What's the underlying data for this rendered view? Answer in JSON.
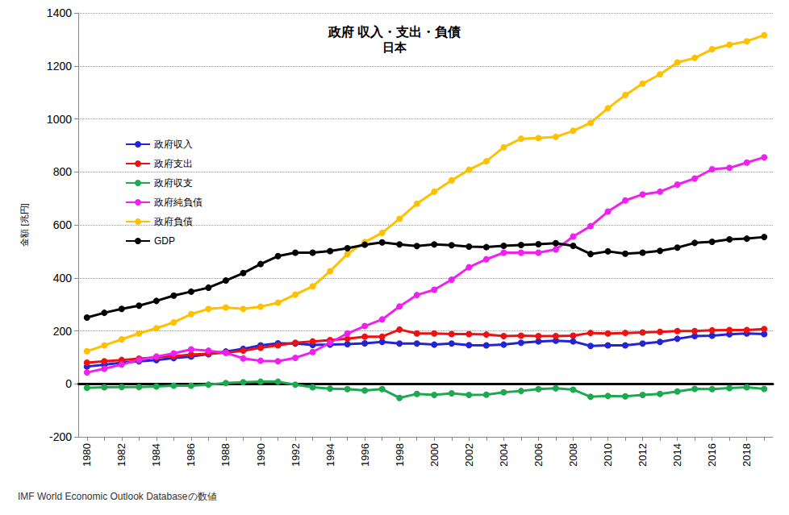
{
  "chart_data": {
    "type": "line",
    "title": "政府 収入・支出・負債",
    "subtitle": "日本",
    "ylabel": "金額 [兆円]",
    "annotations": [
      "IMF World Economic Outlook Databaseの数値"
    ],
    "categories": [
      "1980",
      null,
      "1982",
      null,
      "1984",
      null,
      "1986",
      null,
      "1988",
      null,
      "1990",
      null,
      "1992",
      null,
      "1994",
      null,
      "1996",
      null,
      "1998",
      null,
      "2000",
      null,
      "2002",
      null,
      "2004",
      null,
      "2006",
      null,
      "2008",
      null,
      "2010",
      null,
      "2012",
      null,
      "2014",
      null,
      "2016",
      null,
      "2018",
      null
    ],
    "ylim": [
      -200,
      1400
    ],
    "yticks": [
      -200,
      0,
      200,
      400,
      600,
      800,
      1000,
      1200,
      1400
    ],
    "grid": true,
    "legend": "upper left",
    "marker": "circle",
    "series": [
      {
        "name": "政府収入",
        "color": "#2424d4",
        "values": [
          65,
          72,
          80,
          85,
          90,
          97,
          103,
          112,
          122,
          132,
          145,
          153,
          152,
          147,
          148,
          150,
          153,
          158,
          152,
          152,
          148,
          152,
          146,
          145,
          148,
          155,
          160,
          163,
          160,
          143,
          145,
          145,
          152,
          158,
          170,
          180,
          182,
          187,
          190,
          188
        ]
      },
      {
        "name": "政府支出",
        "color": "#ee1111",
        "values": [
          80,
          85,
          90,
          95,
          100,
          104,
          110,
          114,
          118,
          125,
          136,
          145,
          155,
          160,
          165,
          170,
          178,
          178,
          205,
          190,
          190,
          188,
          188,
          186,
          180,
          182,
          180,
          180,
          182,
          192,
          190,
          192,
          194,
          196,
          199,
          199,
          202,
          203,
          203,
          207
        ]
      },
      {
        "name": "政府収支",
        "color": "#1fa84f",
        "values": [
          -15,
          -13,
          -12,
          -12,
          -10,
          -7,
          -7,
          -3,
          3,
          6,
          8,
          8,
          -3,
          -13,
          -18,
          -20,
          -25,
          -20,
          -53,
          -38,
          -42,
          -36,
          -42,
          -41,
          -32,
          -27,
          -20,
          -17,
          -22,
          -49,
          -46,
          -47,
          -42,
          -38,
          -29,
          -19,
          -20,
          -16,
          -13,
          -19
        ]
      },
      {
        "name": "政府純負債",
        "color": "#f020f0",
        "values": [
          43,
          57,
          73,
          90,
          103,
          115,
          130,
          125,
          117,
          96,
          87,
          85,
          98,
          120,
          155,
          190,
          218,
          243,
          292,
          335,
          355,
          393,
          440,
          470,
          495,
          495,
          495,
          507,
          556,
          595,
          650,
          692,
          715,
          725,
          752,
          775,
          810,
          815,
          835,
          855
        ]
      },
      {
        "name": "政府負債",
        "color": "#ffc000",
        "values": [
          123,
          145,
          168,
          190,
          210,
          232,
          263,
          283,
          288,
          283,
          291,
          306,
          337,
          368,
          425,
          490,
          535,
          570,
          623,
          680,
          725,
          768,
          808,
          840,
          893,
          925,
          928,
          932,
          955,
          985,
          1040,
          1090,
          1133,
          1168,
          1213,
          1230,
          1263,
          1280,
          1293,
          1316
        ]
      },
      {
        "name": "GDP",
        "color": "#000000",
        "values": [
          250,
          268,
          283,
          295,
          313,
          333,
          348,
          363,
          390,
          418,
          452,
          482,
          495,
          495,
          501,
          512,
          525,
          534,
          526,
          520,
          526,
          523,
          518,
          516,
          521,
          524,
          527,
          531,
          521,
          490,
          500,
          491,
          495,
          502,
          514,
          532,
          536,
          545,
          548,
          554
        ]
      }
    ]
  }
}
